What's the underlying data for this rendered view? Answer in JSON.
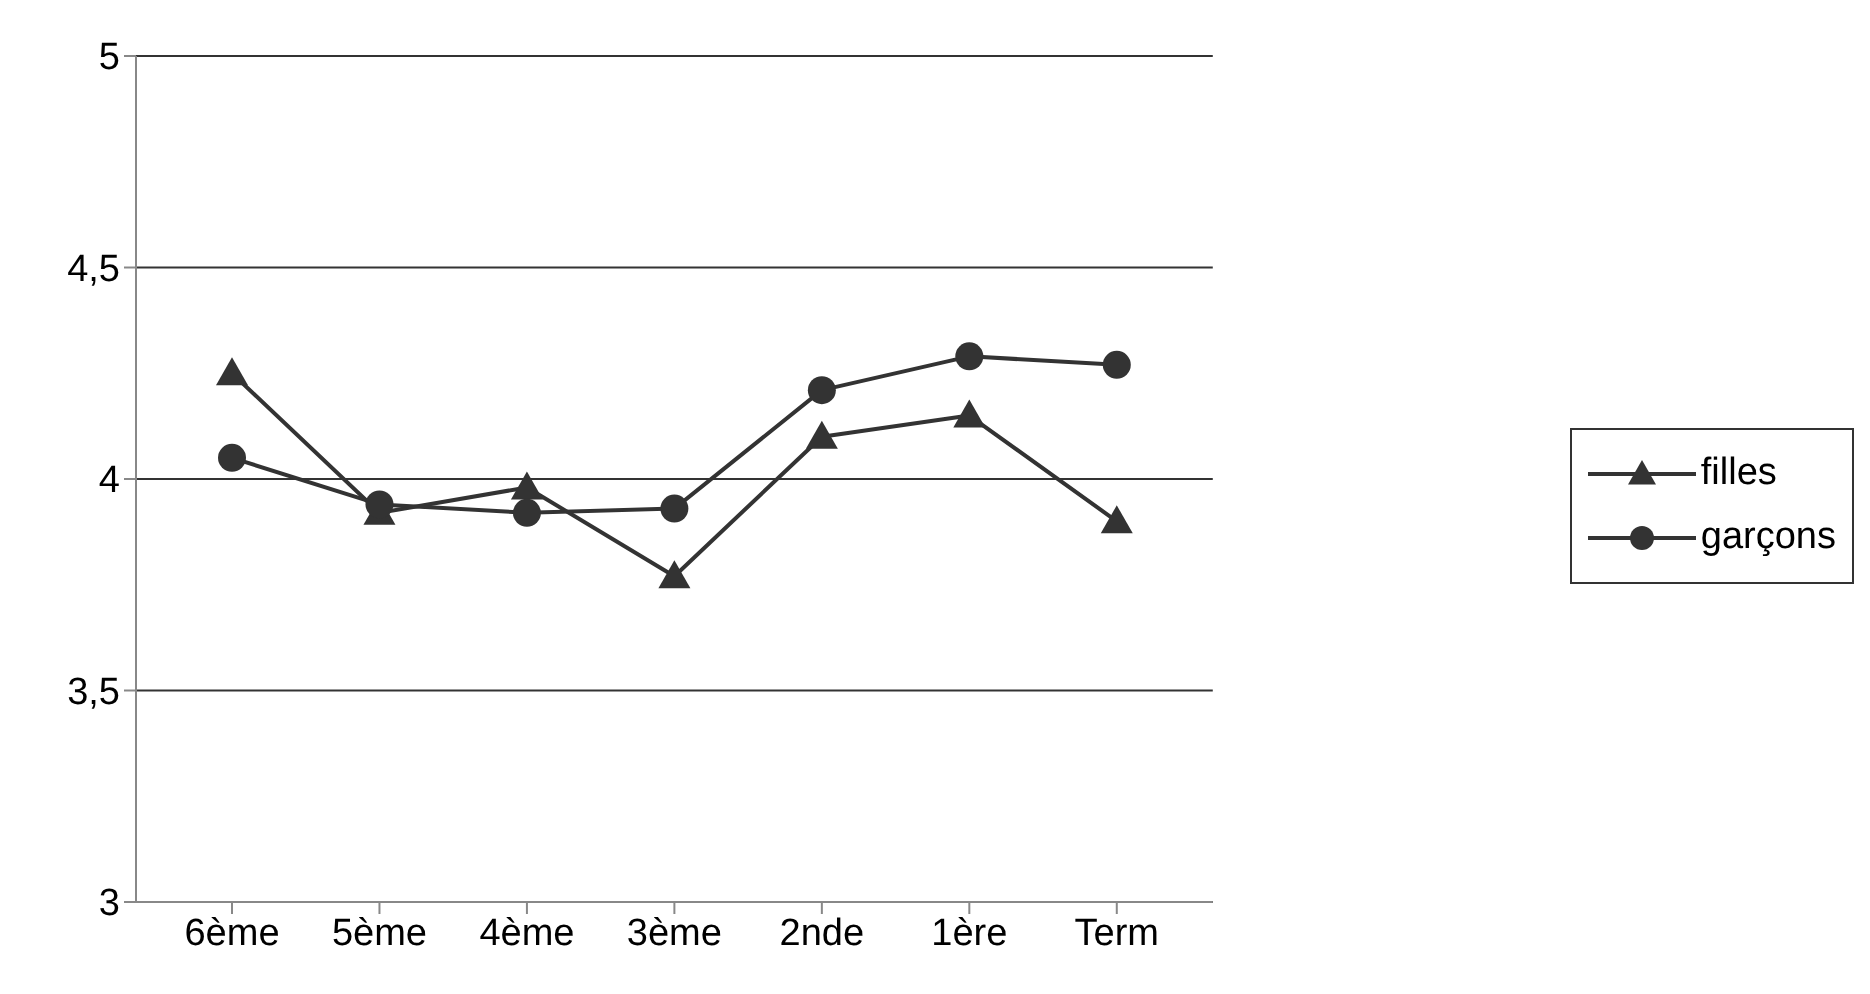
{
  "chart_data": {
    "type": "line",
    "categories": [
      "6ème",
      "5ème",
      "4ème",
      "3ème",
      "2nde",
      "1ère",
      "Term"
    ],
    "series": [
      {
        "name": "filles",
        "color": "#333333",
        "marker": "triangle",
        "values": [
          4.25,
          3.92,
          3.98,
          3.77,
          4.1,
          4.15,
          3.9
        ]
      },
      {
        "name": "garçons",
        "color": "#333333",
        "marker": "circle",
        "values": [
          4.05,
          3.94,
          3.92,
          3.93,
          4.21,
          4.29,
          4.27
        ]
      }
    ],
    "ylim": [
      3,
      5
    ],
    "yticks": [
      3,
      {
        "value": 3.5,
        "label": "3,5"
      },
      4,
      {
        "value": 4.5,
        "label": "4,5"
      },
      5
    ],
    "grid": "y",
    "legend": "right",
    "line_style": "solid"
  }
}
